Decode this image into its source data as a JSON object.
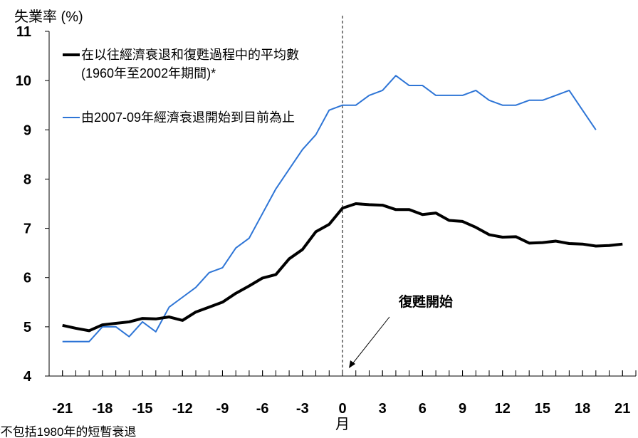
{
  "chart_data": {
    "type": "line",
    "y_axis_label": "失業率 (%)",
    "x_axis_label": "月",
    "annotation": "復甦開始",
    "footnote": "*不包括1980年的短暫衰退",
    "x": [
      -21,
      -20,
      -19,
      -18,
      -17,
      -16,
      -15,
      -14,
      -13,
      -12,
      -11,
      -10,
      -9,
      -8,
      -7,
      -6,
      -5,
      -4,
      -3,
      -2,
      -1,
      0,
      1,
      2,
      3,
      4,
      5,
      6,
      7,
      8,
      9,
      10,
      11,
      12,
      13,
      14,
      15,
      16,
      17,
      18,
      19,
      20,
      21
    ],
    "series": [
      {
        "name": "在以往經濟衰退和復甦過程中的平均數(1960年至2002年期間)*",
        "color": "#000000",
        "values": [
          5.03,
          4.97,
          4.92,
          5.04,
          5.07,
          5.1,
          5.17,
          5.16,
          5.2,
          5.13,
          5.3,
          5.4,
          5.5,
          5.68,
          5.83,
          5.99,
          6.06,
          6.38,
          6.57,
          6.93,
          7.08,
          7.41,
          7.5,
          7.48,
          7.47,
          7.38,
          7.38,
          7.28,
          7.31,
          7.16,
          7.14,
          7.02,
          6.87,
          6.82,
          6.83,
          6.7,
          6.71,
          6.74,
          6.69,
          6.68,
          6.64,
          6.65,
          6.68
        ]
      },
      {
        "name": "由2007-09年經濟衰退開始到目前為止",
        "color": "#2e75d6",
        "values": [
          4.7,
          4.7,
          4.7,
          5.0,
          5.0,
          4.8,
          5.1,
          4.9,
          5.4,
          5.6,
          5.8,
          6.1,
          6.2,
          6.6,
          6.8,
          7.3,
          7.8,
          8.2,
          8.6,
          8.9,
          9.4,
          9.5,
          9.5,
          9.7,
          9.8,
          10.1,
          9.9,
          9.9,
          9.7,
          9.7,
          9.7,
          9.8,
          9.6,
          9.5,
          9.5,
          9.6,
          9.6,
          9.7,
          9.8,
          9.4,
          9.0,
          null,
          null
        ]
      }
    ],
    "xlim": [
      -22,
      22
    ],
    "xticks": [
      -21,
      -18,
      -15,
      -12,
      -9,
      -6,
      -3,
      0,
      3,
      6,
      9,
      12,
      15,
      18,
      21
    ],
    "ylim": [
      4,
      11
    ],
    "yticks": [
      4,
      5,
      6,
      7,
      8,
      9,
      10,
      11
    ]
  }
}
